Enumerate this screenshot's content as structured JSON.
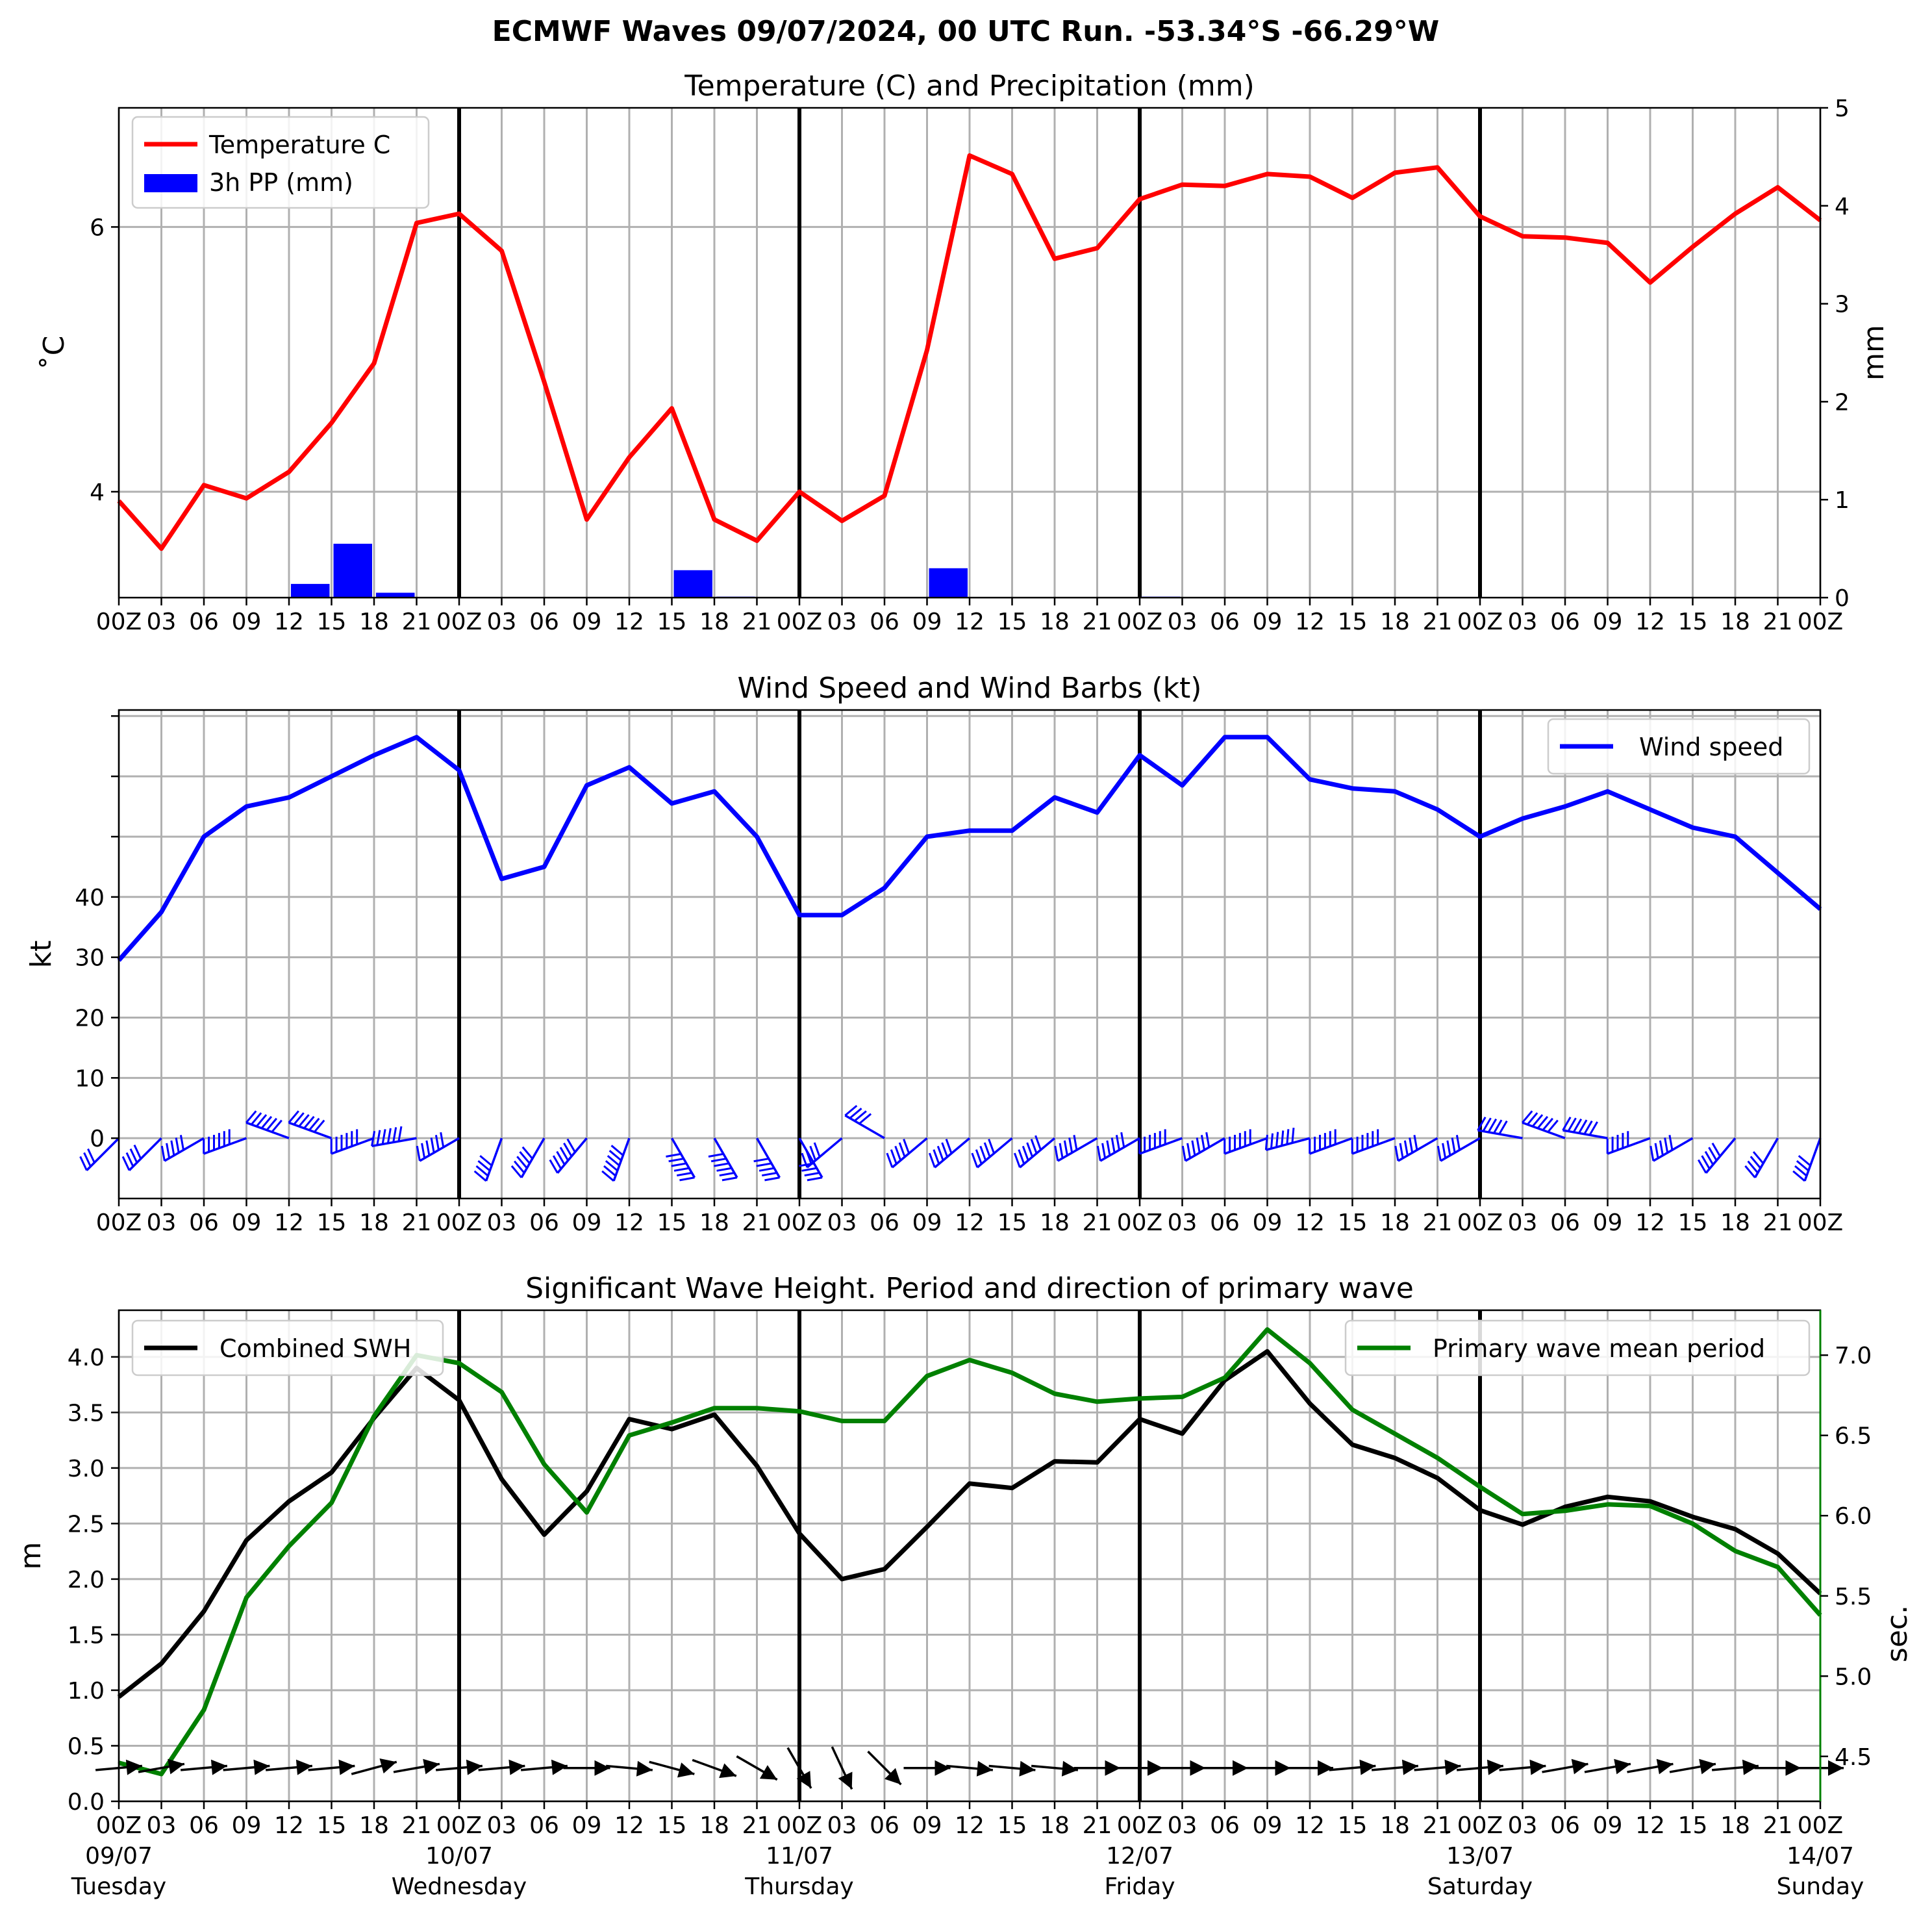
{
  "suptitle": "ECMWF Waves 09/07/2024, 00 UTC Run. -53.34°S -66.29°W",
  "hour_ticks": [
    "00Z",
    "03",
    "06",
    "09",
    "12",
    "15",
    "18",
    "21",
    "00Z",
    "03",
    "06",
    "09",
    "12",
    "15",
    "18",
    "21",
    "00Z",
    "03",
    "06",
    "09",
    "12",
    "15",
    "18",
    "21",
    "00Z",
    "03",
    "06",
    "09",
    "12",
    "15",
    "18",
    "21",
    "00Z",
    "03",
    "06",
    "09",
    "12",
    "15",
    "18",
    "21",
    "00Z"
  ],
  "day_labels": [
    {
      "date": "09/07",
      "day": "Tuesday"
    },
    {
      "date": "10/07",
      "day": "Wednesday"
    },
    {
      "date": "11/07",
      "day": "Thursday"
    },
    {
      "date": "12/07",
      "day": "Friday"
    },
    {
      "date": "13/07",
      "day": "Saturday"
    },
    {
      "date": "14/07",
      "day": "Sunday"
    }
  ],
  "colors": {
    "temperature": "#ff0000",
    "precip": "#0000ff",
    "wind": "#0000ff",
    "swh": "#000000",
    "period": "#008000",
    "grid": "#b0b0b0"
  },
  "chart_data": [
    {
      "type": "line",
      "title": "Temperature (C) and Precipitation (mm)",
      "ylabel": "$^\\circ$C",
      "ylabel_display": "˚C",
      "y2label": "mm",
      "x_hours": [
        0,
        3,
        6,
        9,
        12,
        15,
        18,
        21,
        24,
        27,
        30,
        33,
        36,
        39,
        42,
        45,
        48,
        51,
        54,
        57,
        60,
        63,
        66,
        69,
        72,
        75,
        78,
        81,
        84,
        87,
        90,
        93,
        96,
        99,
        102,
        105,
        108,
        111,
        114,
        117,
        120
      ],
      "ylim": [
        3.2,
        6.9
      ],
      "yticks": [
        4,
        6
      ],
      "y2lim": [
        0,
        5
      ],
      "y2ticks": [
        0,
        1,
        2,
        3,
        4,
        5
      ],
      "legend_placement": "upper-left",
      "series": [
        {
          "name": "Temperature C",
          "kind": "line",
          "axis": "left",
          "values": [
            3.93,
            3.57,
            4.05,
            3.95,
            4.15,
            4.52,
            4.97,
            6.03,
            6.1,
            5.82,
            4.83,
            3.79,
            4.26,
            4.63,
            3.79,
            3.63,
            4.0,
            3.78,
            3.97,
            5.07,
            6.54,
            6.4,
            5.76,
            5.84,
            6.21,
            6.32,
            6.31,
            6.4,
            6.38,
            6.22,
            6.41,
            6.45,
            6.08,
            5.93,
            5.92,
            5.88,
            5.58,
            5.85,
            6.1,
            6.3,
            6.05
          ]
        },
        {
          "name": "3h PP (mm)",
          "kind": "bar",
          "axis": "right",
          "values": [
            0,
            0,
            0,
            0.14,
            0.55,
            0.05,
            0,
            0,
            0,
            0,
            0,
            0,
            0.28,
            0.01,
            0,
            0,
            0,
            0,
            0.3,
            0,
            0,
            0,
            0,
            0.01,
            0,
            0,
            0,
            0,
            0,
            0,
            0,
            0,
            0,
            0,
            0,
            0,
            0,
            0,
            0,
            0
          ]
        }
      ]
    },
    {
      "type": "line",
      "title": "Wind Speed and Wind Barbs (kt)",
      "ylabel": "kt",
      "ylim": [
        -10,
        71
      ],
      "yticks": [
        0,
        10,
        20,
        30,
        40
      ],
      "minor_ticks": [
        50,
        60,
        70
      ],
      "legend_placement": "upper-right",
      "series": [
        {
          "name": "Wind speed",
          "kind": "line",
          "values": [
            29.5,
            37.5,
            50,
            55,
            56.5,
            60,
            63.5,
            66.5,
            61,
            43,
            45,
            58.5,
            61.5,
            55.5,
            57.5,
            50,
            37,
            37,
            41.5,
            50,
            51,
            51,
            56.5,
            54,
            63.5,
            58.5,
            66.5,
            66.5,
            59.5,
            58,
            57.5,
            54.5,
            50,
            53,
            55,
            57.5,
            54.5,
            51.5,
            50,
            44,
            38
          ]
        },
        {
          "name": "barbs",
          "kind": "barb",
          "direction_deg": [
            315,
            315,
            300,
            290,
            250,
            250,
            290,
            280,
            300,
            340,
            330,
            320,
            340,
            30,
            30,
            30,
            30,
            310,
            240,
            310,
            310,
            310,
            310,
            300,
            300,
            290,
            300,
            290,
            285,
            290,
            290,
            300,
            300,
            260,
            250,
            260,
            290,
            300,
            320,
            330,
            340
          ]
        }
      ]
    },
    {
      "type": "line",
      "title": "Significant Wave Height. Period and direction of primary wave",
      "ylabel": "m",
      "y2label": "sec.",
      "ylim": [
        0,
        4.42
      ],
      "yticks": [
        0.0,
        0.5,
        1.0,
        1.5,
        2.0,
        2.5,
        3.0,
        3.5,
        4.0
      ],
      "y2lim": [
        4.22,
        7.28
      ],
      "y2ticks": [
        4.5,
        5.0,
        5.5,
        6.0,
        6.5,
        7.0
      ],
      "series": [
        {
          "name": "Combined SWH",
          "kind": "line",
          "axis": "left",
          "legend_placement": "upper-left",
          "values": [
            0.94,
            1.24,
            1.71,
            2.35,
            2.7,
            2.96,
            3.45,
            3.9,
            3.61,
            2.9,
            2.4,
            2.79,
            3.44,
            3.35,
            3.48,
            3.02,
            2.41,
            2.0,
            2.09,
            2.47,
            2.86,
            2.82,
            3.06,
            3.05,
            3.44,
            3.31,
            3.79,
            4.05,
            3.58,
            3.21,
            3.09,
            2.91,
            2.62,
            2.49,
            2.65,
            2.74,
            2.7,
            2.56,
            2.45,
            2.23,
            1.87
          ]
        },
        {
          "name": "Primary wave mean period",
          "kind": "line",
          "axis": "right",
          "legend_placement": "upper-right",
          "values": [
            4.46,
            4.39,
            4.79,
            5.49,
            5.81,
            6.08,
            6.62,
            7.0,
            6.95,
            6.77,
            6.32,
            6.02,
            6.5,
            6.58,
            6.67,
            6.67,
            6.65,
            6.59,
            6.59,
            6.87,
            6.97,
            6.89,
            6.76,
            6.71,
            6.73,
            6.74,
            6.86,
            7.16,
            6.95,
            6.66,
            6.51,
            6.36,
            6.18,
            6.01,
            6.03,
            6.07,
            6.06,
            5.95,
            5.78,
            5.68,
            5.38
          ]
        },
        {
          "name": "primary wave direction",
          "kind": "arrow",
          "direction_deg": [
            265,
            260,
            265,
            265,
            265,
            265,
            255,
            260,
            265,
            265,
            265,
            270,
            275,
            285,
            290,
            300,
            330,
            335,
            315,
            270,
            275,
            275,
            275,
            270,
            270,
            270,
            270,
            270,
            270,
            265,
            265,
            265,
            265,
            265,
            260,
            260,
            260,
            260,
            265,
            270,
            270
          ]
        }
      ]
    }
  ]
}
